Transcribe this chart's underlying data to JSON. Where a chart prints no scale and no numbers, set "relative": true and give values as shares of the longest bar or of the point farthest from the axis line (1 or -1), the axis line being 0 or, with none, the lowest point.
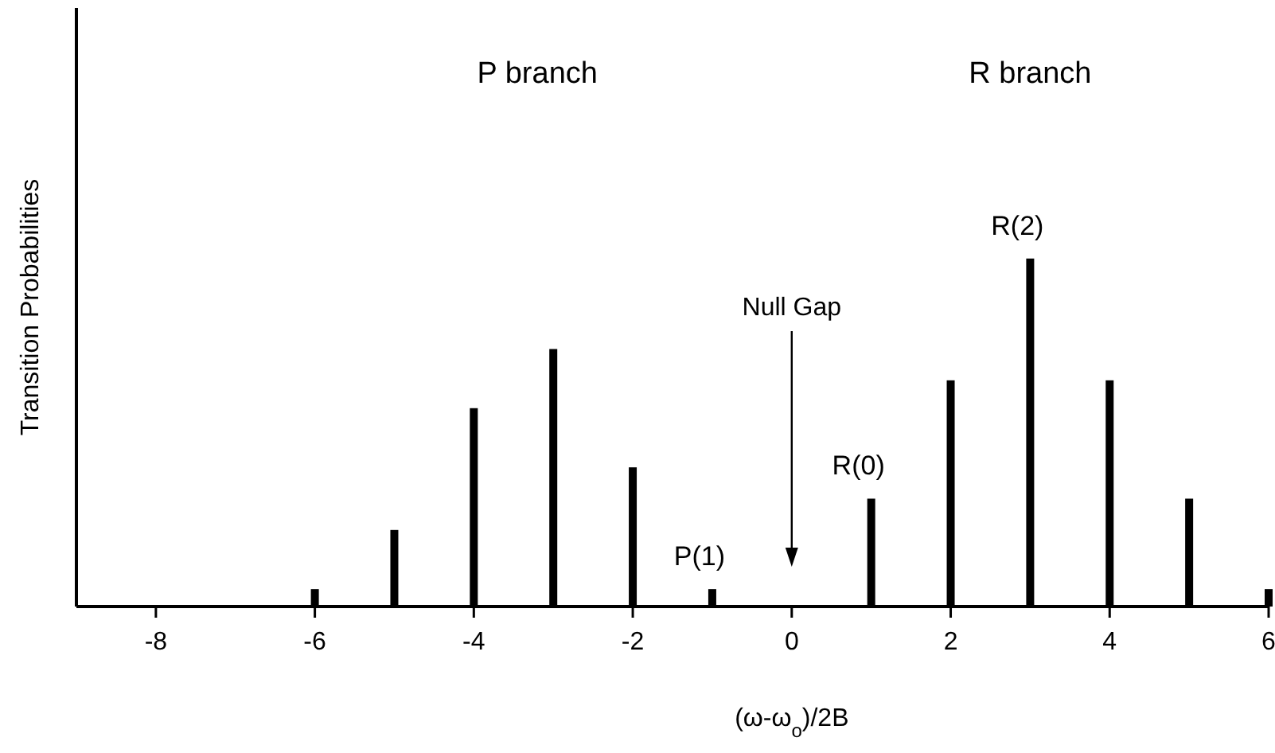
{
  "chart_data": {
    "type": "bar",
    "relative": true,
    "x": [
      -6,
      -5,
      -4,
      -3,
      -2,
      -1,
      1,
      2,
      3,
      4,
      5,
      6
    ],
    "values": [
      0.05,
      0.22,
      0.57,
      0.74,
      0.4,
      0.05,
      0.31,
      0.65,
      1,
      0.65,
      0.31,
      0.05
    ],
    "color": "#000000",
    "xlim": [
      -9,
      6
    ],
    "xticks": [
      -8,
      -6,
      -4,
      -2,
      0,
      2,
      4,
      6
    ],
    "xlabel": "(ω-ω$_{o}$)/2B",
    "ylabel": "Transition Probabilities",
    "grid": false,
    "annotations": [
      "P branch",
      "R branch",
      {
        "text": "R(2)",
        "x": 3,
        "y": 1
      },
      {
        "text": "R(0)",
        "x": 1,
        "y": 0.31
      },
      {
        "text": "P(1)",
        "x": -1,
        "y": 0.05
      },
      "Null Gap"
    ]
  }
}
